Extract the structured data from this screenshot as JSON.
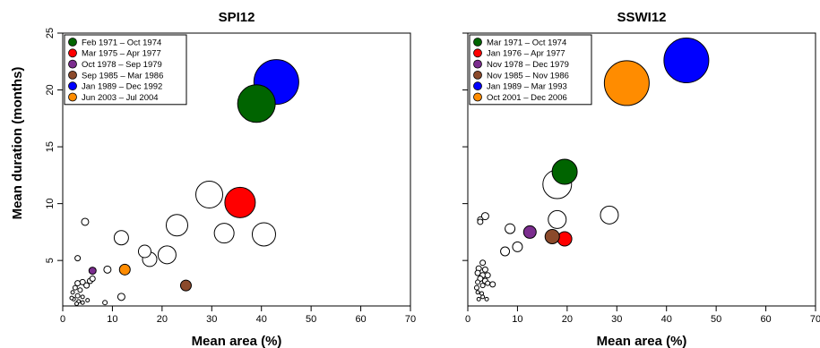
{
  "ylabel": "Mean duration (months)",
  "chart_data": [
    {
      "type": "scatter",
      "title": "SPI12",
      "xlabel": "Mean area (%)",
      "xlim": [
        0,
        70
      ],
      "ylim": [
        1,
        25
      ],
      "xticks": [
        0,
        10,
        20,
        30,
        40,
        50,
        60,
        70
      ],
      "yticks": [
        5,
        10,
        15,
        20,
        25
      ],
      "legend_position": "top-left",
      "highlighted": [
        {
          "label": "Feb 1971 – Oct 1974",
          "color": "#006400",
          "x": 39.0,
          "y": 18.8,
          "r": 21
        },
        {
          "label": "Mar 1975 – Apr 1977",
          "color": "#ff0000",
          "x": 35.7,
          "y": 10.1,
          "r": 17
        },
        {
          "label": "Oct 1978 – Sep 1979",
          "color": "#7b2d8e",
          "x": 6.0,
          "y": 4.1,
          "r": 4
        },
        {
          "label": "Sep 1985 – Mar 1986",
          "color": "#8b4a2b",
          "x": 24.8,
          "y": 2.8,
          "r": 6
        },
        {
          "label": "Jan 1989 – Dec 1992",
          "color": "#0000ff",
          "x": 43.0,
          "y": 20.7,
          "r": 25
        },
        {
          "label": "Jun 2003 – Jul 2004",
          "color": "#ff8c00",
          "x": 12.5,
          "y": 4.2,
          "r": 6
        }
      ],
      "other_events": [
        {
          "x": 29.5,
          "y": 10.8,
          "r": 15
        },
        {
          "x": 40.5,
          "y": 7.3,
          "r": 13
        },
        {
          "x": 23.0,
          "y": 8.1,
          "r": 12
        },
        {
          "x": 32.5,
          "y": 7.4,
          "r": 11
        },
        {
          "x": 21.0,
          "y": 5.5,
          "r": 10
        },
        {
          "x": 17.5,
          "y": 5.1,
          "r": 8
        },
        {
          "x": 16.5,
          "y": 5.8,
          "r": 7
        },
        {
          "x": 11.8,
          "y": 7.0,
          "r": 8
        },
        {
          "x": 4.5,
          "y": 8.4,
          "r": 4
        },
        {
          "x": 9.0,
          "y": 4.2,
          "r": 4
        },
        {
          "x": 11.8,
          "y": 1.8,
          "r": 4
        },
        {
          "x": 3.0,
          "y": 5.2,
          "r": 3
        },
        {
          "x": 5.5,
          "y": 3.2,
          "r": 3
        },
        {
          "x": 6.0,
          "y": 3.4,
          "r": 3
        },
        {
          "x": 3.0,
          "y": 3.0,
          "r": 3
        },
        {
          "x": 4.0,
          "y": 3.1,
          "r": 3
        },
        {
          "x": 4.8,
          "y": 2.8,
          "r": 3
        },
        {
          "x": 2.5,
          "y": 2.6,
          "r": 2.5
        },
        {
          "x": 3.5,
          "y": 2.4,
          "r": 2.5
        },
        {
          "x": 2.0,
          "y": 2.2,
          "r": 2
        },
        {
          "x": 3.0,
          "y": 1.9,
          "r": 2.5
        },
        {
          "x": 4.0,
          "y": 1.8,
          "r": 2
        },
        {
          "x": 2.2,
          "y": 1.6,
          "r": 2
        },
        {
          "x": 5.0,
          "y": 1.5,
          "r": 2
        },
        {
          "x": 3.2,
          "y": 1.4,
          "r": 2
        },
        {
          "x": 1.8,
          "y": 1.7,
          "r": 2
        },
        {
          "x": 2.8,
          "y": 1.2,
          "r": 2
        },
        {
          "x": 4.0,
          "y": 1.3,
          "r": 2
        },
        {
          "x": 8.5,
          "y": 1.3,
          "r": 2.5
        }
      ]
    },
    {
      "type": "scatter",
      "title": "SSWI12",
      "xlabel": "Mean area (%)",
      "xlim": [
        0,
        70
      ],
      "ylim": [
        1,
        25
      ],
      "xticks": [
        0,
        10,
        20,
        30,
        40,
        50,
        60,
        70
      ],
      "yticks": [
        5,
        10,
        15,
        20,
        25
      ],
      "legend_position": "top-left",
      "highlighted": [
        {
          "label": "Mar 1971 – Oct 1974",
          "color": "#006400",
          "x": 19.5,
          "y": 12.8,
          "r": 14
        },
        {
          "label": "Jan 1976 – Apr 1977",
          "color": "#ff0000",
          "x": 19.5,
          "y": 6.9,
          "r": 8
        },
        {
          "label": "Nov 1978 – Dec 1979",
          "color": "#7b2d8e",
          "x": 12.5,
          "y": 7.5,
          "r": 7
        },
        {
          "label": "Nov 1985 – Nov 1986",
          "color": "#8b4a2b",
          "x": 17.0,
          "y": 7.1,
          "r": 8
        },
        {
          "label": "Jan 1989 – Mar 1993",
          "color": "#0000ff",
          "x": 44.0,
          "y": 22.6,
          "r": 25
        },
        {
          "label": "Oct 2001 – Dec 2006",
          "color": "#ff8c00",
          "x": 32.0,
          "y": 20.6,
          "r": 25
        }
      ],
      "other_events": [
        {
          "x": 18.0,
          "y": 11.7,
          "r": 16
        },
        {
          "x": 18.0,
          "y": 8.6,
          "r": 10
        },
        {
          "x": 28.5,
          "y": 9.0,
          "r": 10
        },
        {
          "x": 8.5,
          "y": 7.8,
          "r": 5.5
        },
        {
          "x": 10.0,
          "y": 6.2,
          "r": 5.5
        },
        {
          "x": 7.5,
          "y": 5.8,
          "r": 5
        },
        {
          "x": 3.5,
          "y": 8.9,
          "r": 4
        },
        {
          "x": 2.5,
          "y": 8.6,
          "r": 3
        },
        {
          "x": 2.5,
          "y": 8.4,
          "r": 3
        },
        {
          "x": 3.0,
          "y": 4.8,
          "r": 3
        },
        {
          "x": 2.2,
          "y": 4.3,
          "r": 3
        },
        {
          "x": 3.5,
          "y": 4.2,
          "r": 3
        },
        {
          "x": 2.0,
          "y": 3.9,
          "r": 3
        },
        {
          "x": 3.0,
          "y": 3.7,
          "r": 3
        },
        {
          "x": 4.0,
          "y": 3.7,
          "r": 3
        },
        {
          "x": 2.5,
          "y": 3.4,
          "r": 3
        },
        {
          "x": 3.5,
          "y": 3.2,
          "r": 3
        },
        {
          "x": 2.0,
          "y": 3.1,
          "r": 2.5
        },
        {
          "x": 4.0,
          "y": 3.0,
          "r": 2.5
        },
        {
          "x": 5.0,
          "y": 2.9,
          "r": 3
        },
        {
          "x": 3.0,
          "y": 2.8,
          "r": 2.5
        },
        {
          "x": 1.8,
          "y": 2.6,
          "r": 2.5
        },
        {
          "x": 2.0,
          "y": 2.2,
          "r": 2
        },
        {
          "x": 2.8,
          "y": 2.1,
          "r": 2
        },
        {
          "x": 3.0,
          "y": 1.8,
          "r": 2
        },
        {
          "x": 3.8,
          "y": 1.6,
          "r": 2
        },
        {
          "x": 2.2,
          "y": 1.6,
          "r": 2
        }
      ]
    }
  ]
}
